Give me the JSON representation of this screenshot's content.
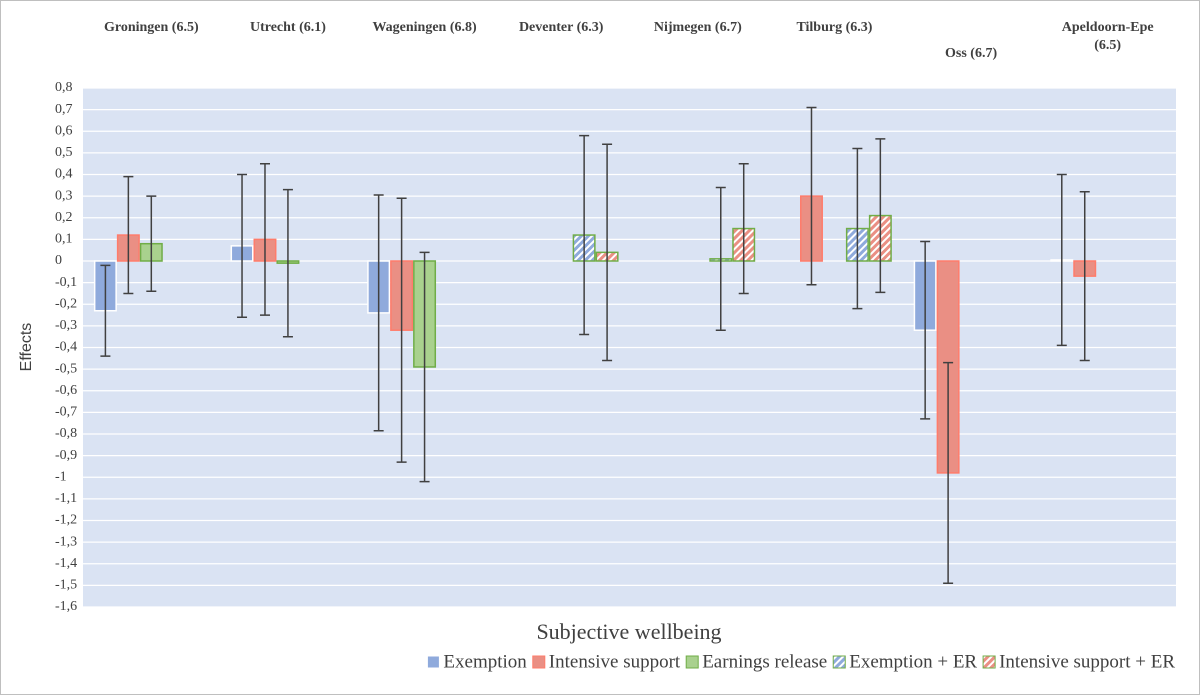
{
  "chart_data": {
    "type": "bar",
    "y_axis_label": "Effects",
    "x_axis_label": "Subjective wellbeing",
    "categories": [
      "Groningen (6.5)",
      "Utrecht (6.1)",
      "Wageningen (6.8)",
      "Deventer (6.3)",
      "Nijmegen (6.7)",
      "Tilburg (6.3)",
      "Oss (6.7)",
      "Apeldoorn-Epe (6.5)"
    ],
    "series": [
      {
        "name": "Exemption",
        "color": "#8faadc",
        "border": "#ffffff",
        "hatch": false,
        "values": [
          -0.23,
          0.07,
          -0.24,
          null,
          null,
          null,
          -0.32,
          0.005
        ],
        "errors": [
          0.21,
          0.33,
          0.545,
          null,
          null,
          null,
          0.41,
          0.395
        ]
      },
      {
        "name": "Intensive support",
        "color": "#ea8f84",
        "border": "#ff7c6b",
        "hatch": false,
        "values": [
          0.12,
          0.1,
          -0.32,
          null,
          null,
          0.3,
          -0.98,
          -0.07
        ],
        "errors": [
          0.27,
          0.35,
          0.61,
          null,
          null,
          0.41,
          0.51,
          0.39
        ]
      },
      {
        "name": "Earnings release",
        "color": "#a9d18e",
        "border": "#70ad47",
        "hatch": false,
        "values": [
          0.08,
          -0.01,
          -0.49,
          null,
          null,
          null,
          null,
          null
        ],
        "errors": [
          0.22,
          0.34,
          0.53,
          null,
          null,
          null,
          null,
          null
        ]
      },
      {
        "name": "Exemption + ER",
        "color": "#8faadc",
        "border": "#70ad47",
        "hatch": true,
        "values": [
          null,
          null,
          null,
          0.12,
          0.01,
          0.15,
          null,
          null
        ],
        "errors": [
          null,
          null,
          null,
          0.46,
          0.33,
          0.37,
          null,
          null
        ]
      },
      {
        "name": "Intensive support + ER",
        "color": "#ea8f84",
        "border": "#70ad47",
        "hatch": true,
        "values": [
          null,
          null,
          null,
          0.04,
          0.15,
          0.21,
          null,
          null
        ],
        "errors": [
          null,
          null,
          null,
          0.5,
          0.3,
          0.355,
          null,
          null
        ]
      }
    ],
    "ylim": [
      -1.6,
      0.8
    ],
    "yticks": [
      {
        "value": -1.6,
        "label": "-1,6"
      },
      {
        "value": -1.5,
        "label": "-1,5"
      },
      {
        "value": -1.4,
        "label": "-1,4"
      },
      {
        "value": -1.3,
        "label": "-1,3"
      },
      {
        "value": -1.2,
        "label": "-1,2"
      },
      {
        "value": -1.1,
        "label": "-1,1"
      },
      -1,
      {
        "value": -0.9,
        "label": "-0,9"
      },
      {
        "value": -0.8,
        "label": "-0,8"
      },
      {
        "value": -0.7,
        "label": "-0,7"
      },
      {
        "value": -0.6,
        "label": "-0,6"
      },
      {
        "value": -0.5,
        "label": "-0,5"
      },
      {
        "value": -0.4,
        "label": "-0,4"
      },
      {
        "value": -0.3,
        "label": "-0,3"
      },
      {
        "value": -0.2,
        "label": "-0,2"
      },
      {
        "value": -0.1,
        "label": "-0,1"
      },
      0,
      {
        "value": 0.1,
        "label": "0,1"
      },
      {
        "value": 0.2,
        "label": "0,2"
      },
      {
        "value": 0.3,
        "label": "0,3"
      },
      {
        "value": 0.4,
        "label": "0,4"
      },
      {
        "value": 0.5,
        "label": "0,5"
      },
      {
        "value": 0.6,
        "label": "0,6"
      },
      {
        "value": 0.7,
        "label": "0,7"
      },
      {
        "value": 0.8,
        "label": "0,8"
      }
    ],
    "grid": true,
    "plot_background": "#dae3f3"
  }
}
